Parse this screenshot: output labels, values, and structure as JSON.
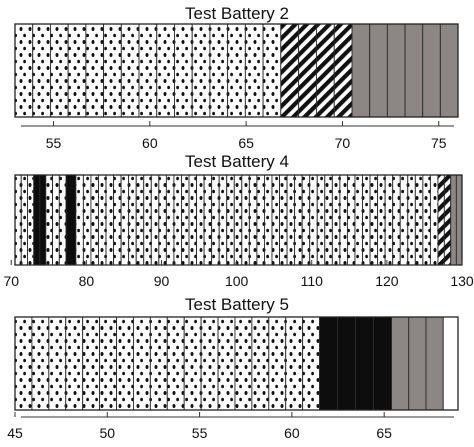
{
  "chart_data": [
    {
      "type": "bar",
      "title": "Test Battery 2",
      "xlim": [
        53,
        76
      ],
      "xticks": [
        55,
        60,
        65,
        70,
        75
      ],
      "segments": [
        {
          "pattern": "dotted",
          "from": 53,
          "to": 66.8
        },
        {
          "pattern": "hatched",
          "from": 66.8,
          "to": 70.5
        },
        {
          "pattern": "gray",
          "from": 70.5,
          "to": 76
        }
      ],
      "stripe_width": 0.9
    },
    {
      "type": "bar",
      "title": "Test Battery 4",
      "xlim": [
        70.5,
        130
      ],
      "xticks": [
        70,
        80,
        90,
        100,
        110,
        120,
        130
      ],
      "segments": [
        {
          "pattern": "dotted",
          "from": 70.5,
          "to": 73
        },
        {
          "pattern": "black",
          "from": 73,
          "to": 74.6
        },
        {
          "pattern": "dotted",
          "from": 74.6,
          "to": 77.3
        },
        {
          "pattern": "black",
          "from": 77.3,
          "to": 78.6
        },
        {
          "pattern": "dotted",
          "from": 78.6,
          "to": 126.8
        },
        {
          "pattern": "hatched",
          "from": 126.8,
          "to": 128.5
        },
        {
          "pattern": "gray",
          "from": 128.5,
          "to": 130
        }
      ],
      "stripe_width": 1.0
    },
    {
      "type": "bar",
      "title": "Test Battery 5",
      "xlim": [
        45,
        69
      ],
      "xticks": [
        45,
        50,
        55,
        60,
        65
      ],
      "segments": [
        {
          "pattern": "dotted",
          "from": 45,
          "to": 61.5
        },
        {
          "pattern": "black",
          "from": 61.5,
          "to": 65.4
        },
        {
          "pattern": "gray",
          "from": 65.4,
          "to": 68.2
        },
        {
          "pattern": "white",
          "from": 68.2,
          "to": 69
        }
      ],
      "stripe_width": 0.9
    }
  ]
}
